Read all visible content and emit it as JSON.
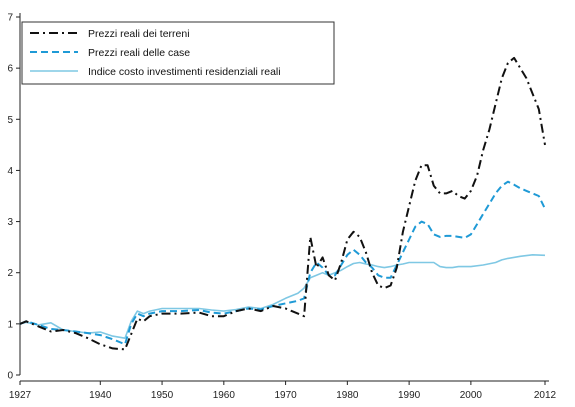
{
  "chart_data": {
    "type": "line",
    "title": "",
    "xlabel": "",
    "ylabel": "",
    "xlim": [
      1927,
      2012
    ],
    "ylim": [
      0,
      7
    ],
    "x_ticks": [
      1927,
      1940,
      1950,
      1960,
      1970,
      1980,
      1990,
      2000,
      2012
    ],
    "y_ticks": [
      0,
      1,
      2,
      3,
      4,
      5,
      6,
      7
    ],
    "grid": false,
    "legend_position": "top-left",
    "series": [
      {
        "name": "Prezzi reali dei terreni",
        "color": "#111111",
        "style": "dash-dot",
        "points": [
          [
            1927,
            1.0
          ],
          [
            1928,
            1.05
          ],
          [
            1930,
            0.95
          ],
          [
            1932,
            0.85
          ],
          [
            1934,
            0.88
          ],
          [
            1936,
            0.82
          ],
          [
            1938,
            0.72
          ],
          [
            1940,
            0.6
          ],
          [
            1942,
            0.52
          ],
          [
            1944,
            0.5
          ],
          [
            1945,
            0.8
          ],
          [
            1946,
            1.1
          ],
          [
            1947,
            1.05
          ],
          [
            1948,
            1.15
          ],
          [
            1950,
            1.2
          ],
          [
            1953,
            1.2
          ],
          [
            1956,
            1.22
          ],
          [
            1958,
            1.15
          ],
          [
            1960,
            1.15
          ],
          [
            1962,
            1.25
          ],
          [
            1964,
            1.3
          ],
          [
            1966,
            1.25
          ],
          [
            1968,
            1.35
          ],
          [
            1970,
            1.3
          ],
          [
            1971,
            1.25
          ],
          [
            1972,
            1.2
          ],
          [
            1973,
            1.15
          ],
          [
            1974,
            2.7
          ],
          [
            1975,
            2.1
          ],
          [
            1976,
            2.3
          ],
          [
            1977,
            1.95
          ],
          [
            1978,
            1.85
          ],
          [
            1979,
            2.2
          ],
          [
            1980,
            2.65
          ],
          [
            1981,
            2.8
          ],
          [
            1982,
            2.7
          ],
          [
            1983,
            2.4
          ],
          [
            1984,
            2.0
          ],
          [
            1985,
            1.75
          ],
          [
            1986,
            1.7
          ],
          [
            1987,
            1.75
          ],
          [
            1988,
            2.1
          ],
          [
            1989,
            2.8
          ],
          [
            1990,
            3.3
          ],
          [
            1991,
            3.8
          ],
          [
            1992,
            4.1
          ],
          [
            1993,
            4.1
          ],
          [
            1994,
            3.7
          ],
          [
            1995,
            3.55
          ],
          [
            1996,
            3.55
          ],
          [
            1997,
            3.6
          ],
          [
            1998,
            3.5
          ],
          [
            1999,
            3.45
          ],
          [
            2000,
            3.6
          ],
          [
            2001,
            3.9
          ],
          [
            2002,
            4.4
          ],
          [
            2003,
            4.8
          ],
          [
            2004,
            5.3
          ],
          [
            2005,
            5.8
          ],
          [
            2006,
            6.1
          ],
          [
            2007,
            6.2
          ],
          [
            2008,
            6.0
          ],
          [
            2009,
            5.8
          ],
          [
            2010,
            5.5
          ],
          [
            2011,
            5.2
          ],
          [
            2012,
            4.5
          ]
        ]
      },
      {
        "name": "Prezzi reali delle case",
        "color": "#1f9ad6",
        "style": "dashed",
        "points": [
          [
            1927,
            1.0
          ],
          [
            1928,
            1.05
          ],
          [
            1930,
            0.98
          ],
          [
            1932,
            0.9
          ],
          [
            1934,
            0.88
          ],
          [
            1936,
            0.85
          ],
          [
            1938,
            0.82
          ],
          [
            1940,
            0.78
          ],
          [
            1942,
            0.7
          ],
          [
            1944,
            0.6
          ],
          [
            1945,
            1.0
          ],
          [
            1946,
            1.2
          ],
          [
            1947,
            1.15
          ],
          [
            1948,
            1.2
          ],
          [
            1950,
            1.25
          ],
          [
            1953,
            1.25
          ],
          [
            1956,
            1.27
          ],
          [
            1958,
            1.22
          ],
          [
            1960,
            1.2
          ],
          [
            1962,
            1.25
          ],
          [
            1964,
            1.3
          ],
          [
            1966,
            1.28
          ],
          [
            1968,
            1.35
          ],
          [
            1970,
            1.4
          ],
          [
            1972,
            1.45
          ],
          [
            1973,
            1.5
          ],
          [
            1974,
            2.0
          ],
          [
            1975,
            2.2
          ],
          [
            1976,
            2.1
          ],
          [
            1977,
            1.95
          ],
          [
            1978,
            1.95
          ],
          [
            1979,
            2.15
          ],
          [
            1980,
            2.35
          ],
          [
            1981,
            2.45
          ],
          [
            1982,
            2.35
          ],
          [
            1983,
            2.2
          ],
          [
            1984,
            2.1
          ],
          [
            1985,
            1.95
          ],
          [
            1986,
            1.9
          ],
          [
            1987,
            1.9
          ],
          [
            1988,
            2.15
          ],
          [
            1989,
            2.4
          ],
          [
            1990,
            2.65
          ],
          [
            1991,
            2.9
          ],
          [
            1992,
            3.0
          ],
          [
            1993,
            2.95
          ],
          [
            1994,
            2.75
          ],
          [
            1995,
            2.7
          ],
          [
            1996,
            2.72
          ],
          [
            1997,
            2.72
          ],
          [
            1998,
            2.7
          ],
          [
            1999,
            2.68
          ],
          [
            2000,
            2.75
          ],
          [
            2001,
            2.95
          ],
          [
            2002,
            3.15
          ],
          [
            2003,
            3.35
          ],
          [
            2004,
            3.55
          ],
          [
            2005,
            3.7
          ],
          [
            2006,
            3.78
          ],
          [
            2007,
            3.72
          ],
          [
            2008,
            3.65
          ],
          [
            2009,
            3.6
          ],
          [
            2010,
            3.55
          ],
          [
            2011,
            3.5
          ],
          [
            2012,
            3.25
          ]
        ]
      },
      {
        "name": "Indice costo investimenti residenziali reali",
        "color": "#7fc8e4",
        "style": "solid",
        "points": [
          [
            1927,
            1.0
          ],
          [
            1928,
            1.03
          ],
          [
            1930,
            0.98
          ],
          [
            1932,
            1.02
          ],
          [
            1934,
            0.88
          ],
          [
            1936,
            0.85
          ],
          [
            1938,
            0.82
          ],
          [
            1940,
            0.84
          ],
          [
            1942,
            0.76
          ],
          [
            1944,
            0.72
          ],
          [
            1945,
            1.05
          ],
          [
            1946,
            1.25
          ],
          [
            1947,
            1.2
          ],
          [
            1948,
            1.25
          ],
          [
            1950,
            1.3
          ],
          [
            1953,
            1.3
          ],
          [
            1956,
            1.3
          ],
          [
            1958,
            1.27
          ],
          [
            1960,
            1.25
          ],
          [
            1962,
            1.28
          ],
          [
            1964,
            1.33
          ],
          [
            1966,
            1.3
          ],
          [
            1968,
            1.38
          ],
          [
            1970,
            1.5
          ],
          [
            1972,
            1.6
          ],
          [
            1973,
            1.7
          ],
          [
            1974,
            1.9
          ],
          [
            1975,
            1.95
          ],
          [
            1976,
            2.0
          ],
          [
            1977,
            1.95
          ],
          [
            1978,
            2.0
          ],
          [
            1979,
            2.05
          ],
          [
            1980,
            2.12
          ],
          [
            1981,
            2.18
          ],
          [
            1982,
            2.2
          ],
          [
            1983,
            2.17
          ],
          [
            1984,
            2.15
          ],
          [
            1985,
            2.12
          ],
          [
            1986,
            2.1
          ],
          [
            1987,
            2.12
          ],
          [
            1988,
            2.15
          ],
          [
            1989,
            2.17
          ],
          [
            1990,
            2.2
          ],
          [
            1992,
            2.2
          ],
          [
            1994,
            2.2
          ],
          [
            1995,
            2.12
          ],
          [
            1996,
            2.1
          ],
          [
            1997,
            2.1
          ],
          [
            1998,
            2.12
          ],
          [
            1999,
            2.12
          ],
          [
            2000,
            2.12
          ],
          [
            2002,
            2.15
          ],
          [
            2004,
            2.2
          ],
          [
            2005,
            2.25
          ],
          [
            2006,
            2.28
          ],
          [
            2008,
            2.32
          ],
          [
            2010,
            2.35
          ],
          [
            2012,
            2.34
          ]
        ]
      }
    ]
  }
}
